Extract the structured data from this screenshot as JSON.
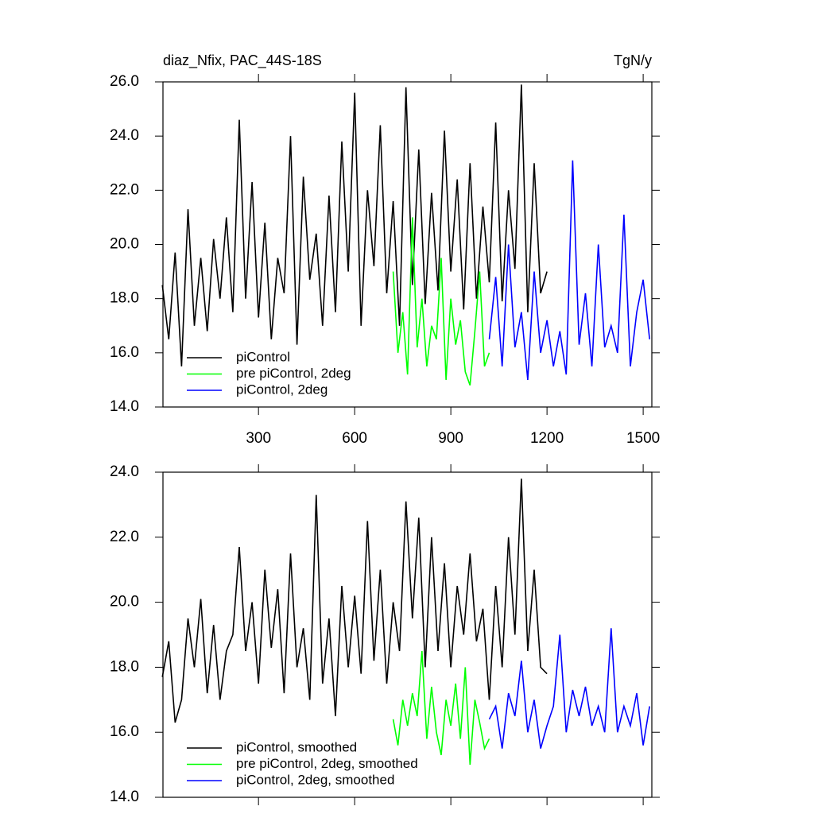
{
  "chart_data": [
    {
      "type": "line",
      "title": "diaz_Nfix, PAC_44S-18S",
      "right_title": "TgN/y",
      "xlim": [
        2,
        1527
      ],
      "xticks": [
        300,
        600,
        900,
        1200,
        1500
      ],
      "ylim": [
        14,
        26
      ],
      "yticks": [
        {
          "value": 14,
          "label": "14.0"
        },
        {
          "value": 16,
          "label": "16.0"
        },
        {
          "value": 18,
          "label": "18.0"
        },
        {
          "value": 20,
          "label": "20.0"
        },
        {
          "value": 22,
          "label": "22.0"
        },
        {
          "value": 24,
          "label": "24.0"
        },
        {
          "value": 26,
          "label": "26.0"
        }
      ],
      "series": [
        {
          "name": "piControl",
          "color": "#000000",
          "x": [
            0,
            20,
            40,
            60,
            80,
            100,
            120,
            140,
            160,
            180,
            200,
            220,
            240,
            260,
            280,
            300,
            320,
            340,
            360,
            380,
            400,
            420,
            440,
            460,
            480,
            500,
            520,
            540,
            560,
            580,
            600,
            620,
            640,
            660,
            680,
            700,
            720,
            740,
            760,
            780,
            800,
            820,
            840,
            860,
            880,
            900,
            920,
            940,
            960,
            980,
            1000,
            1020,
            1040,
            1060,
            1080,
            1100,
            1120,
            1140,
            1160,
            1180,
            1200
          ],
          "values": [
            18.5,
            16.5,
            19.7,
            15.5,
            21.3,
            17.0,
            19.5,
            16.8,
            20.2,
            18.0,
            21.0,
            17.5,
            24.6,
            18.0,
            22.3,
            17.3,
            20.8,
            16.5,
            19.5,
            18.2,
            24.0,
            16.3,
            22.5,
            18.7,
            20.4,
            17.0,
            21.8,
            17.5,
            23.8,
            19.0,
            25.6,
            17.0,
            22.0,
            19.2,
            24.4,
            18.2,
            21.6,
            17.0,
            25.8,
            18.5,
            23.5,
            17.8,
            21.9,
            18.3,
            24.2,
            19.0,
            22.4,
            17.6,
            23.0,
            18.0,
            21.4,
            18.6,
            24.5,
            17.9,
            22.0,
            19.1,
            25.9,
            17.5,
            23.0,
            18.2,
            19.0
          ]
        },
        {
          "name": "pre piControl, 2deg",
          "color": "#00ff00",
          "x": [
            720,
            735,
            750,
            765,
            780,
            795,
            810,
            825,
            840,
            855,
            870,
            885,
            900,
            915,
            930,
            945,
            960,
            975,
            990,
            1005,
            1020
          ],
          "values": [
            19.0,
            16.0,
            17.5,
            15.2,
            21.0,
            16.2,
            18.0,
            15.5,
            17.0,
            16.5,
            19.5,
            15.0,
            18.0,
            16.3,
            17.2,
            15.3,
            14.8,
            16.8,
            19.0,
            15.5,
            16.0
          ]
        },
        {
          "name": "piControl, 2deg",
          "color": "#0000ff",
          "x": [
            1020,
            1040,
            1060,
            1080,
            1100,
            1120,
            1140,
            1160,
            1180,
            1200,
            1220,
            1240,
            1260,
            1280,
            1300,
            1320,
            1340,
            1360,
            1380,
            1400,
            1420,
            1440,
            1460,
            1480,
            1500,
            1520
          ],
          "values": [
            16.5,
            18.8,
            15.5,
            20.0,
            16.2,
            17.5,
            15.0,
            19.0,
            16.0,
            17.2,
            15.5,
            16.8,
            15.2,
            23.1,
            16.3,
            18.2,
            15.5,
            20.0,
            16.2,
            17.0,
            16.0,
            21.1,
            15.5,
            17.5,
            18.7,
            16.5
          ]
        }
      ]
    },
    {
      "type": "line",
      "xlim": [
        2,
        1527
      ],
      "xticks": [
        300,
        600,
        900,
        1200,
        1500
      ],
      "ylim": [
        14,
        24
      ],
      "yticks": [
        {
          "value": 14,
          "label": "14.0"
        },
        {
          "value": 16,
          "label": "16.0"
        },
        {
          "value": 18,
          "label": "18.0"
        },
        {
          "value": 20,
          "label": "20.0"
        },
        {
          "value": 22,
          "label": "22.0"
        },
        {
          "value": 24,
          "label": "24.0"
        }
      ],
      "series": [
        {
          "name": "piControl, smoothed",
          "color": "#000000",
          "x": [
            0,
            20,
            40,
            60,
            80,
            100,
            120,
            140,
            160,
            180,
            200,
            220,
            240,
            260,
            280,
            300,
            320,
            340,
            360,
            380,
            400,
            420,
            440,
            460,
            480,
            500,
            520,
            540,
            560,
            580,
            600,
            620,
            640,
            660,
            680,
            700,
            720,
            740,
            760,
            780,
            800,
            820,
            840,
            860,
            880,
            900,
            920,
            940,
            960,
            980,
            1000,
            1020,
            1040,
            1060,
            1080,
            1100,
            1120,
            1140,
            1160,
            1180,
            1200
          ],
          "values": [
            17.7,
            18.8,
            16.3,
            17.0,
            19.5,
            18.0,
            20.1,
            17.2,
            19.3,
            17.0,
            18.5,
            19.0,
            21.7,
            18.5,
            20.0,
            17.5,
            21.0,
            18.6,
            20.4,
            17.2,
            21.5,
            18.0,
            19.2,
            17.0,
            23.3,
            17.5,
            19.5,
            16.5,
            20.5,
            18.0,
            20.2,
            17.8,
            22.5,
            18.2,
            21.0,
            17.5,
            20.0,
            18.5,
            23.1,
            19.5,
            22.6,
            18.0,
            22.0,
            18.5,
            21.2,
            18.0,
            20.5,
            19.0,
            21.5,
            18.8,
            19.8,
            17.0,
            20.5,
            18.0,
            22.0,
            19.0,
            23.8,
            18.5,
            21.0,
            18.0,
            17.8
          ]
        },
        {
          "name": "pre piControl, 2deg, smoothed",
          "color": "#00ff00",
          "x": [
            720,
            735,
            750,
            765,
            780,
            795,
            810,
            825,
            840,
            855,
            870,
            885,
            900,
            915,
            930,
            945,
            960,
            975,
            990,
            1005,
            1020
          ],
          "values": [
            16.4,
            15.6,
            17.0,
            16.2,
            17.2,
            16.5,
            18.5,
            15.8,
            17.4,
            16.0,
            15.3,
            17.0,
            16.2,
            17.5,
            15.8,
            18.0,
            15.0,
            17.0,
            16.3,
            15.5,
            15.8
          ]
        },
        {
          "name": "piControl, 2deg, smoothed",
          "color": "#0000ff",
          "x": [
            1020,
            1040,
            1060,
            1080,
            1100,
            1120,
            1140,
            1160,
            1180,
            1200,
            1220,
            1240,
            1260,
            1280,
            1300,
            1320,
            1340,
            1360,
            1380,
            1400,
            1420,
            1440,
            1460,
            1480,
            1500,
            1520
          ],
          "values": [
            16.4,
            16.8,
            15.5,
            17.2,
            16.5,
            18.2,
            16.0,
            17.0,
            15.5,
            16.2,
            16.8,
            19.0,
            16.0,
            17.3,
            16.5,
            17.4,
            16.2,
            16.8,
            16.0,
            19.2,
            16.0,
            16.8,
            16.2,
            17.2,
            15.6,
            16.8
          ]
        }
      ]
    }
  ]
}
